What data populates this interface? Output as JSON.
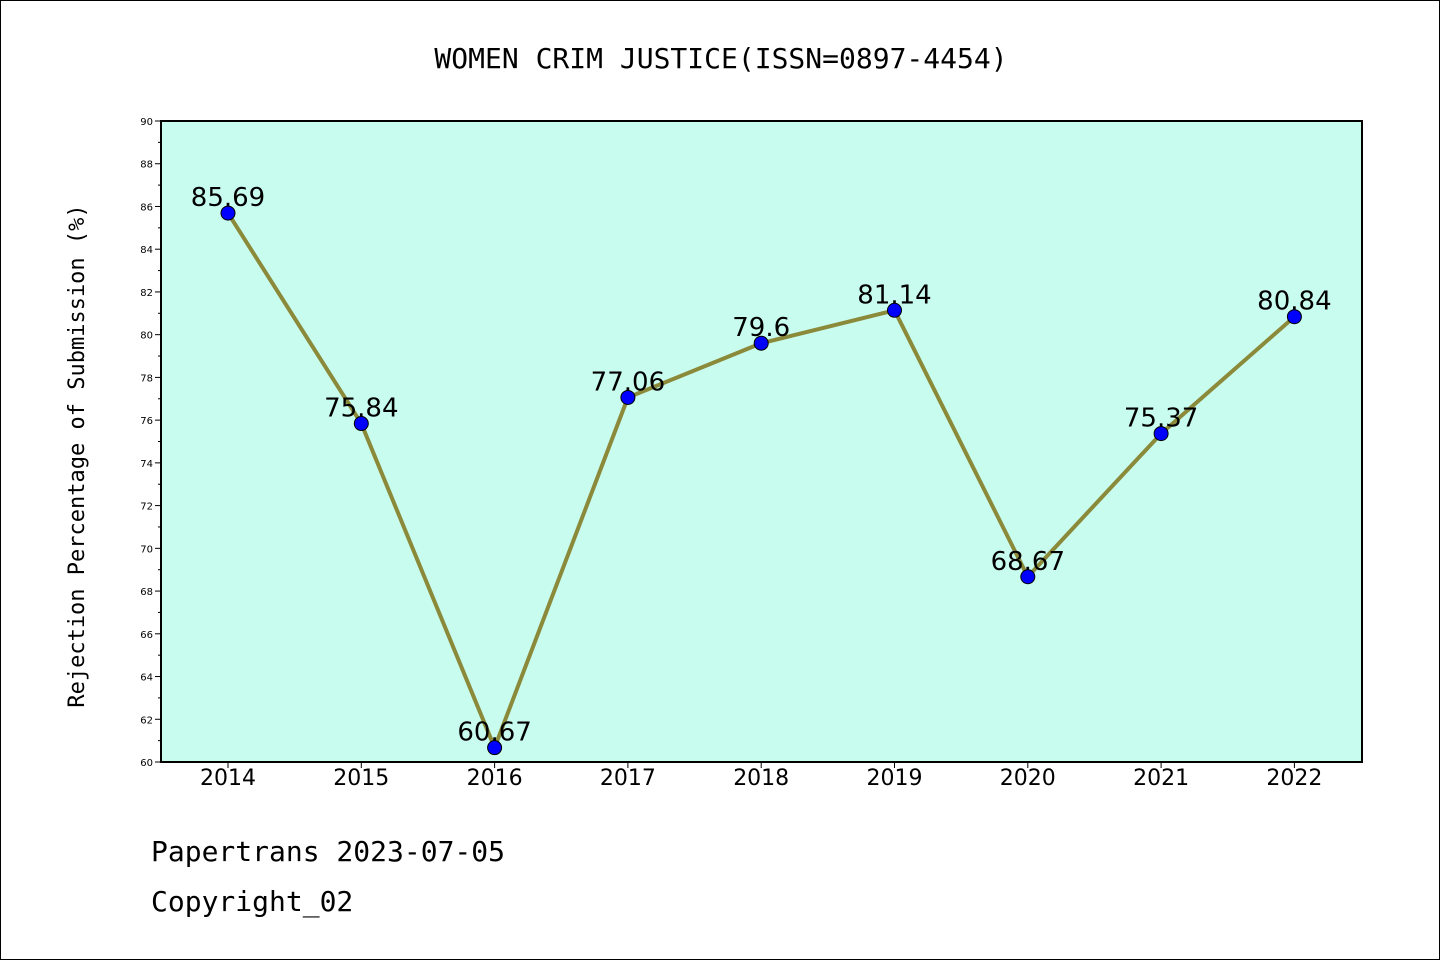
{
  "chart_data": {
    "type": "line",
    "title": "WOMEN CRIM JUSTICE(ISSN=0897-4454)",
    "ylabel": "Rejection Percentage of Submission (%)",
    "xlabel": "",
    "categories": [
      "2014",
      "2015",
      "2016",
      "2017",
      "2018",
      "2019",
      "2020",
      "2021",
      "2022"
    ],
    "series": [
      {
        "values": [
          85.69,
          75.84,
          60.67,
          77.06,
          79.6,
          81.14,
          68.67,
          75.37,
          80.84
        ],
        "labels": [
          "85.69",
          "75.84",
          "60.67",
          "77.06",
          "79.6",
          "81.14",
          "68.67",
          "75.37",
          "80.84"
        ]
      }
    ],
    "ylim": [
      60,
      90
    ],
    "yticks": [
      "60",
      "62",
      "64",
      "66",
      "68",
      "70",
      "72",
      "74",
      "76",
      "78",
      "80",
      "82",
      "84",
      "86",
      "88",
      "90"
    ],
    "grid": false,
    "colors": {
      "plot_background": "#c8fcee",
      "line": "#8b8a3a",
      "marker": "#0000ff"
    }
  },
  "footer": {
    "line1": "Papertrans 2023-07-05",
    "line2": "Copyright_02"
  }
}
